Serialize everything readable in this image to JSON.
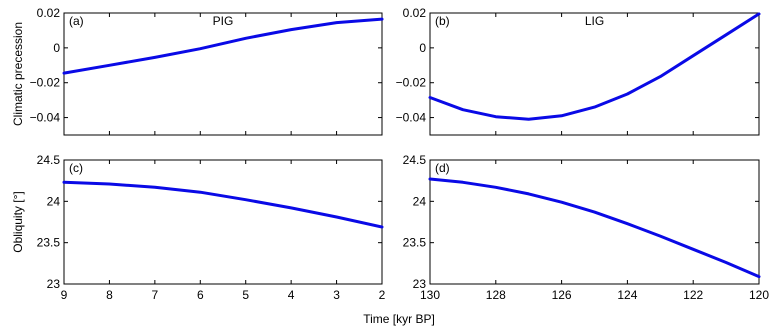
{
  "figure": {
    "xlabel": "Time [kyr BP]",
    "line_color": "#0a0ae6"
  },
  "chart_data": [
    {
      "id": "a",
      "type": "line",
      "panel_letter": "(a)",
      "title": "PIG",
      "ylabel": "Climatic precession",
      "xlim": [
        9,
        2
      ],
      "ylim": [
        -0.05,
        0.02
      ],
      "x_ticks": [
        9,
        8,
        7,
        6,
        5,
        4,
        3,
        2
      ],
      "x_tick_labels": [],
      "y_ticks": [
        -0.04,
        -0.02,
        0,
        0.02
      ],
      "y_tick_labels": [
        "−0.04",
        "−0.02",
        "0",
        "0.02"
      ],
      "series": [
        {
          "x": [
            9,
            8,
            7,
            6,
            5,
            4,
            3,
            2
          ],
          "y": [
            -0.0145,
            -0.01,
            -0.0055,
            -0.0005,
            0.0055,
            0.0105,
            0.0145,
            0.0165
          ]
        }
      ]
    },
    {
      "id": "b",
      "type": "line",
      "panel_letter": "(b)",
      "title": "LIG",
      "ylabel": "",
      "xlim": [
        130,
        120
      ],
      "ylim": [
        -0.05,
        0.02
      ],
      "x_ticks": [
        130,
        128,
        126,
        124,
        122,
        120
      ],
      "x_tick_labels": [],
      "y_ticks": [
        -0.04,
        -0.02,
        0,
        0.02
      ],
      "y_tick_labels": [
        "−0.04",
        "−0.02",
        "0",
        "0.02"
      ],
      "series": [
        {
          "x": [
            130,
            129,
            128,
            127,
            126,
            125,
            124,
            123,
            122,
            121,
            120
          ],
          "y": [
            -0.0285,
            -0.0355,
            -0.0395,
            -0.041,
            -0.039,
            -0.034,
            -0.0265,
            -0.0165,
            -0.0045,
            0.0075,
            0.0195
          ]
        }
      ]
    },
    {
      "id": "c",
      "type": "line",
      "panel_letter": "(c)",
      "title": "",
      "ylabel": "Obliquity [°]",
      "xlim": [
        9,
        2
      ],
      "ylim": [
        23,
        24.5
      ],
      "x_ticks": [
        9,
        8,
        7,
        6,
        5,
        4,
        3,
        2
      ],
      "x_tick_labels": [
        "9",
        "8",
        "7",
        "6",
        "5",
        "4",
        "3",
        "2"
      ],
      "y_ticks": [
        23,
        23.5,
        24,
        24.5
      ],
      "y_tick_labels": [
        "23",
        "23.5",
        "24",
        "24.5"
      ],
      "series": [
        {
          "x": [
            9,
            8,
            7,
            6,
            5,
            4,
            3,
            2
          ],
          "y": [
            24.23,
            24.21,
            24.17,
            24.11,
            24.02,
            23.92,
            23.81,
            23.69
          ]
        }
      ]
    },
    {
      "id": "d",
      "type": "line",
      "panel_letter": "(d)",
      "title": "",
      "ylabel": "",
      "xlim": [
        130,
        120
      ],
      "ylim": [
        23,
        24.5
      ],
      "x_ticks": [
        130,
        128,
        126,
        124,
        122,
        120
      ],
      "x_tick_labels": [
        "130",
        "128",
        "126",
        "124",
        "122",
        "120"
      ],
      "y_ticks": [
        23,
        23.5,
        24,
        24.5
      ],
      "y_tick_labels": [
        "23",
        "23.5",
        "24",
        "24.5"
      ],
      "series": [
        {
          "x": [
            130,
            129,
            128,
            127,
            126,
            125,
            124,
            123,
            122,
            121,
            120
          ],
          "y": [
            24.27,
            24.23,
            24.17,
            24.09,
            23.99,
            23.87,
            23.73,
            23.58,
            23.42,
            23.26,
            23.09
          ]
        }
      ]
    }
  ]
}
